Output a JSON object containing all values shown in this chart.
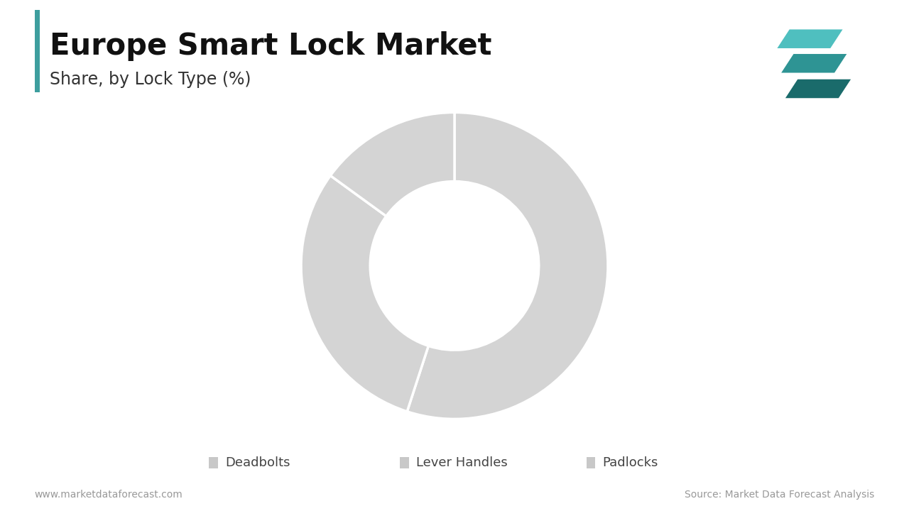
{
  "title": "Europe Smart Lock Market",
  "subtitle": "Share, by Lock Type (%)",
  "segments": [
    "Deadbolts",
    "Lever Handles",
    "Padlocks"
  ],
  "values": [
    55,
    30,
    15
  ],
  "donut_color": "#d4d4d4",
  "wedge_edge_color": "#ffffff",
  "background_color": "#ffffff",
  "title_bar_color": "#3d9e9e",
  "footer_left": "www.marketdataforecast.com",
  "footer_right": "Source: Market Data Forecast Analysis",
  "title_fontsize": 30,
  "subtitle_fontsize": 17,
  "legend_fontsize": 13,
  "footer_fontsize": 10,
  "donut_width": 0.45,
  "logo_colors": [
    "#1a6b6b",
    "#2e9494",
    "#4fbfbf"
  ],
  "legend_square_color": "#c8c8c8"
}
